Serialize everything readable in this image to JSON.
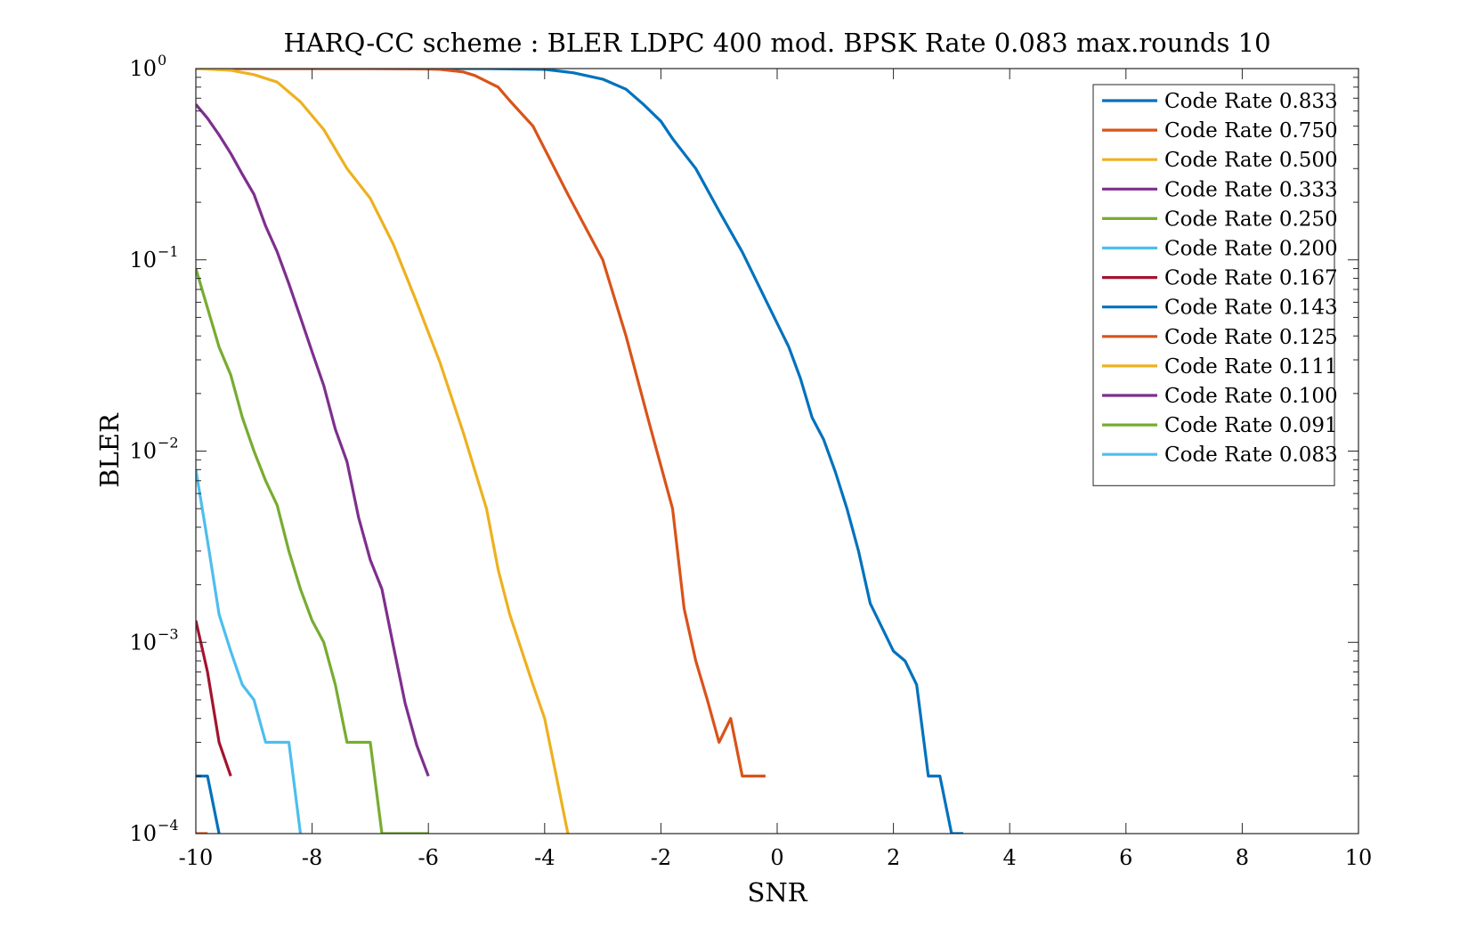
{
  "chart_data": {
    "type": "line",
    "title": "HARQ-CC scheme : BLER LDPC 400 mod. BPSK Rate 0.083 max.rounds 10",
    "xlabel": "SNR",
    "ylabel": "BLER",
    "xlim": [
      -10,
      10
    ],
    "ylim": [
      0.0001,
      1
    ],
    "yscale": "log",
    "x_ticks": [
      -10,
      -8,
      -6,
      -4,
      -2,
      0,
      2,
      4,
      6,
      8,
      10
    ],
    "x_tick_labels": [
      "-10",
      "-8",
      "-6",
      "-4",
      "-2",
      "0",
      "2",
      "4",
      "6",
      "8",
      "10"
    ],
    "y_tick_labels": [
      {
        "base": "10",
        "exp": "0"
      },
      {
        "base": "10",
        "exp": "−1"
      },
      {
        "base": "10",
        "exp": "−2"
      },
      {
        "base": "10",
        "exp": "−3"
      },
      {
        "base": "10",
        "exp": "−4"
      }
    ],
    "grid": false,
    "legend_position": "top-right",
    "series": [
      {
        "name": "Code Rate 0.833",
        "color": "#0072BD",
        "x": [
          -10,
          -8,
          -6,
          -5,
          -4,
          -3.5,
          -3,
          -2.6,
          -2.3,
          -2.0,
          -1.8,
          -1.4,
          -1.0,
          -0.6,
          -0.2,
          0.2,
          0.4,
          0.6,
          0.8,
          1.0,
          1.2,
          1.4,
          1.6,
          2.0,
          2.2,
          2.4,
          2.6,
          2.8,
          3.0,
          3.2
        ],
        "y": [
          1,
          1,
          1,
          1,
          0.99,
          0.95,
          0.88,
          0.78,
          0.65,
          0.53,
          0.43,
          0.3,
          0.18,
          0.11,
          0.062,
          0.035,
          0.024,
          0.015,
          0.0115,
          0.0078,
          0.005,
          0.003,
          0.0016,
          0.0009,
          0.0008,
          0.0006,
          0.0002,
          0.0002,
          0.0001,
          0.0001
        ]
      },
      {
        "name": "Code Rate 0.750",
        "color": "#D95319",
        "x": [
          -10,
          -7,
          -6,
          -5.8,
          -5.4,
          -5.2,
          -4.8,
          -4.6,
          -4.2,
          -4.0,
          -3.6,
          -3.0,
          -2.6,
          -2.2,
          -1.8,
          -1.6,
          -1.4,
          -1.2,
          -1.0,
          -0.8,
          -0.6,
          -0.2
        ],
        "y": [
          1,
          1,
          0.995,
          0.99,
          0.96,
          0.92,
          0.8,
          0.68,
          0.5,
          0.38,
          0.22,
          0.1,
          0.04,
          0.014,
          0.005,
          0.0015,
          0.0008,
          0.0005,
          0.0003,
          0.0004,
          0.0002,
          0.0002
        ]
      },
      {
        "name": "Code Rate 0.500",
        "color": "#EDB120",
        "x": [
          -10,
          -9.4,
          -9,
          -8.6,
          -8.2,
          -7.8,
          -7.4,
          -7,
          -6.6,
          -6.2,
          -5.8,
          -5.4,
          -5,
          -4.8,
          -4.6,
          -4.2,
          -4,
          -3.8,
          -3.6
        ],
        "y": [
          1,
          0.98,
          0.93,
          0.85,
          0.67,
          0.48,
          0.3,
          0.21,
          0.12,
          0.06,
          0.029,
          0.0125,
          0.005,
          0.0024,
          0.0014,
          0.0006,
          0.0004,
          0.0002,
          0.0001
        ]
      },
      {
        "name": "Code Rate 0.333",
        "color": "#7E2F8E",
        "x": [
          -10,
          -9.8,
          -9.6,
          -9.4,
          -9.2,
          -9,
          -8.8,
          -8.6,
          -8.4,
          -8.2,
          -8,
          -7.8,
          -7.6,
          -7.4,
          -7.2,
          -7,
          -6.8,
          -6.6,
          -6.4,
          -6.2,
          -6
        ],
        "y": [
          0.65,
          0.55,
          0.45,
          0.36,
          0.28,
          0.22,
          0.15,
          0.11,
          0.075,
          0.05,
          0.033,
          0.022,
          0.013,
          0.0088,
          0.0045,
          0.0027,
          0.0019,
          0.00095,
          0.00048,
          0.00029,
          0.0002
        ]
      },
      {
        "name": "Code Rate 0.250",
        "color": "#77AC30",
        "x": [
          -10,
          -9.6,
          -9.4,
          -9.2,
          -9,
          -8.8,
          -8.6,
          -8.4,
          -8.2,
          -8,
          -7.8,
          -7.6,
          -7.4,
          -7.2,
          -7,
          -6.8,
          -6.6,
          -6.4,
          -6.2,
          -6
        ],
        "y": [
          0.09,
          0.035,
          0.025,
          0.015,
          0.01,
          0.007,
          0.0052,
          0.003,
          0.0019,
          0.0013,
          0.001,
          0.0006,
          0.0003,
          0.0003,
          0.0003,
          0.0001,
          0.0001,
          0.0001,
          0.0001,
          0.0001
        ]
      },
      {
        "name": "Code Rate 0.200",
        "color": "#4DBEEE",
        "x": [
          -10,
          -9.8,
          -9.6,
          -9.4,
          -9.2,
          -9,
          -8.8,
          -8.6,
          -8.4,
          -8.2
        ],
        "y": [
          0.008,
          0.0034,
          0.0014,
          0.0009,
          0.0006,
          0.0005,
          0.0003,
          0.0003,
          0.0003,
          0.0001
        ]
      },
      {
        "name": "Code Rate 0.167",
        "color": "#A2142F",
        "x": [
          -10,
          -9.8,
          -9.6,
          -9.4
        ],
        "y": [
          0.0013,
          0.0007,
          0.0003,
          0.0002
        ]
      },
      {
        "name": "Code Rate 0.143",
        "color": "#0072BD",
        "x": [
          -10,
          -9.8,
          -9.6
        ],
        "y": [
          0.0002,
          0.0002,
          0.0001
        ]
      },
      {
        "name": "Code Rate 0.125",
        "color": "#D95319",
        "x": [
          -10,
          -9.8
        ],
        "y": [
          0.0001,
          0.0001
        ]
      },
      {
        "name": "Code Rate 0.111",
        "color": "#EDB120",
        "x": [],
        "y": []
      },
      {
        "name": "Code Rate 0.100",
        "color": "#7E2F8E",
        "x": [],
        "y": []
      },
      {
        "name": "Code Rate 0.091",
        "color": "#77AC30",
        "x": [],
        "y": []
      },
      {
        "name": "Code Rate 0.083",
        "color": "#4DBEEE",
        "x": [],
        "y": []
      }
    ]
  }
}
